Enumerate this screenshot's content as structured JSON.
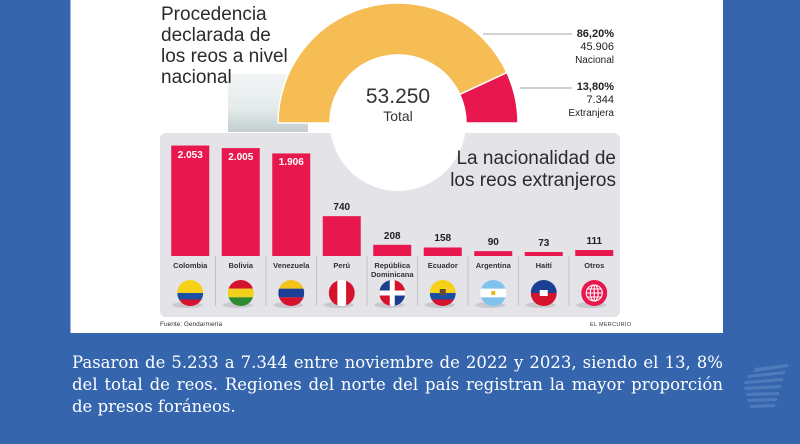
{
  "page": {
    "caption": "Pasaron de 5.233 a 7.344 entre noviembre de 2022 y 2023, siendo el 13, 8% del total de reos. Regiones del norte del país registran la mayor proporción de presos foráneos.",
    "background_color": "#3465ad",
    "logo_icon": "profile-head-lines-icon"
  },
  "chart_data": [
    {
      "type": "pie",
      "variant": "half-donut",
      "title": "Procedencia declarada de los reos a nivel nacional",
      "center_value": "53.250",
      "center_label": "Total",
      "total": 53250,
      "slices": [
        {
          "name": "Nacional",
          "value": 45906,
          "percent_label": "86,20%",
          "value_label": "45.906",
          "percent": 86.2,
          "color": "#f6bd55"
        },
        {
          "name": "Extranjera",
          "value": 7344,
          "percent_label": "13,80%",
          "value_label": "7.344",
          "percent": 13.8,
          "color": "#e8174d"
        }
      ]
    },
    {
      "type": "bar",
      "title": "La nacionalidad de los reos extranjeros",
      "categories": [
        "Colombia",
        "Bolivia",
        "Venezuela",
        "Perú",
        "República Dominicana",
        "Ecuador",
        "Argentina",
        "Haití",
        "Otros"
      ],
      "values": [
        2053,
        2005,
        1906,
        740,
        208,
        158,
        90,
        73,
        111
      ],
      "value_labels": [
        "2.053",
        "2.005",
        "1.906",
        "740",
        "208",
        "158",
        "90",
        "73",
        "111"
      ],
      "flag_icons": [
        "colombia-flag-icon",
        "bolivia-flag-icon",
        "venezuela-flag-icon",
        "peru-flag-icon",
        "dominican-republic-flag-icon",
        "ecuador-flag-icon",
        "argentina-flag-icon",
        "haiti-flag-icon",
        "globe-icon"
      ],
      "bar_color": "#e8174d",
      "xlabel": "",
      "ylabel": "",
      "ylim": [
        0,
        2100
      ],
      "grid": false
    }
  ],
  "footer": {
    "source": "Fuente: Gendarmería",
    "publisher": "EL MERCURIO"
  }
}
